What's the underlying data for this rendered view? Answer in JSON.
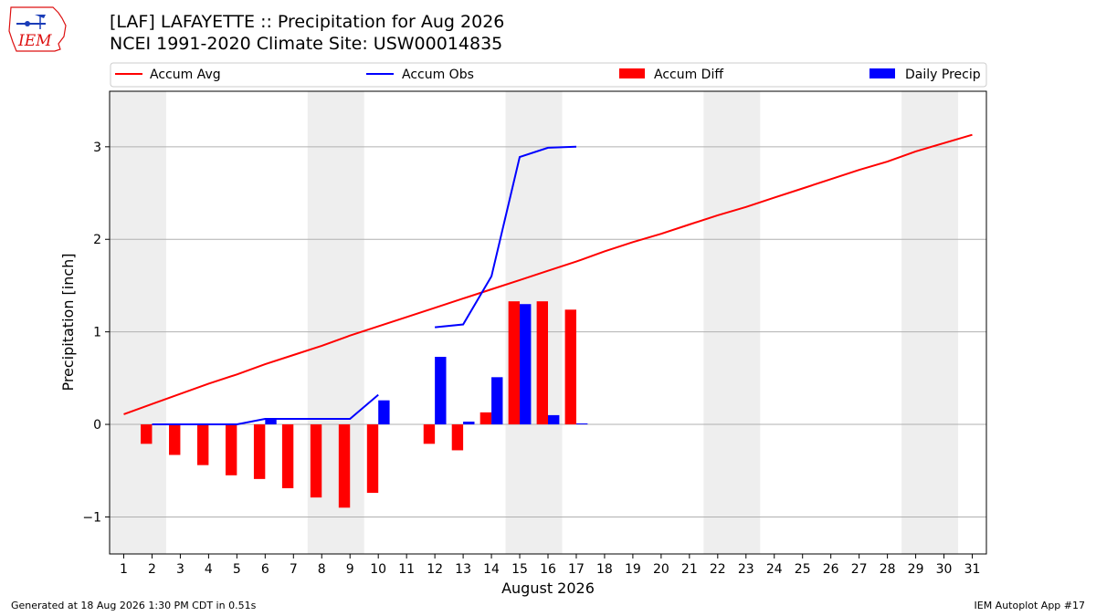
{
  "header": {
    "logo_text": "IEM",
    "title_line1": "[LAF] LAFAYETTE :: Precipitation for Aug 2026",
    "title_line2": "NCEI 1991-2020 Climate Site: USW00014835"
  },
  "footer": {
    "generated": "Generated at 18 Aug 2026 1:30 PM CDT in 0.51s",
    "app": "IEM Autoplot App #17"
  },
  "colors": {
    "accum_avg": "#ff0000",
    "accum_obs": "#0000ff",
    "accum_diff": "#ff0000",
    "daily_precip": "#0000ff",
    "weekend_shade": "#eeeeee",
    "grid": "#b0b0b0"
  },
  "chart_data": {
    "type": "bar",
    "xlabel": "August 2026",
    "ylabel": "Precipitation [inch]",
    "x": [
      1,
      2,
      3,
      4,
      5,
      6,
      7,
      8,
      9,
      10,
      11,
      12,
      13,
      14,
      15,
      16,
      17,
      18,
      19,
      20,
      21,
      22,
      23,
      24,
      25,
      26,
      27,
      28,
      29,
      30,
      31
    ],
    "xlim": [
      0.5,
      31.5
    ],
    "ylim": [
      -1.4,
      3.6
    ],
    "yticks": [
      -1,
      0,
      1,
      2,
      3
    ],
    "ytick_labels": [
      "−1",
      "0",
      "1",
      "2",
      "3"
    ],
    "grid": "y",
    "legend_position": "top",
    "shaded_days": [
      [
        1,
        2
      ],
      [
        8,
        9
      ],
      [
        15,
        16
      ],
      [
        22,
        23
      ],
      [
        29,
        30
      ]
    ],
    "series": [
      {
        "name": "Accum Avg",
        "type": "line",
        "x": [
          1,
          2,
          3,
          4,
          5,
          6,
          7,
          8,
          9,
          10,
          11,
          12,
          13,
          14,
          15,
          16,
          17,
          18,
          19,
          20,
          21,
          22,
          23,
          24,
          25,
          26,
          27,
          28,
          29,
          30,
          31
        ],
        "values": [
          0.11,
          0.22,
          0.33,
          0.44,
          0.54,
          0.65,
          0.75,
          0.85,
          0.96,
          1.06,
          1.16,
          1.26,
          1.36,
          1.46,
          1.56,
          1.66,
          1.76,
          1.87,
          1.97,
          2.06,
          2.16,
          2.26,
          2.35,
          2.45,
          2.55,
          2.65,
          2.75,
          2.84,
          2.95,
          3.04,
          3.13
        ]
      },
      {
        "name": "Accum Obs",
        "type": "line",
        "x": [
          2,
          3,
          4,
          5,
          6,
          7,
          8,
          9,
          10,
          11,
          12,
          13,
          14,
          15,
          16,
          17
        ],
        "values": [
          0.0,
          0.0,
          0.0,
          0.0,
          0.06,
          0.06,
          0.06,
          0.06,
          0.32,
          null,
          1.05,
          1.08,
          1.6,
          2.89,
          2.99,
          3.0
        ]
      },
      {
        "name": "Accum Diff",
        "type": "bar",
        "x": [
          2,
          3,
          4,
          5,
          6,
          7,
          8,
          9,
          10,
          12,
          13,
          14,
          15,
          16,
          17
        ],
        "values": [
          -0.21,
          -0.33,
          -0.44,
          -0.55,
          -0.59,
          -0.69,
          -0.79,
          -0.9,
          -0.74,
          -0.21,
          -0.28,
          0.13,
          1.33,
          1.33,
          1.24
        ]
      },
      {
        "name": "Daily Precip",
        "type": "bar",
        "x": [
          6,
          10,
          12,
          13,
          14,
          15,
          16,
          17
        ],
        "values": [
          0.06,
          0.26,
          0.73,
          0.03,
          0.51,
          1.3,
          0.1,
          0.01
        ]
      }
    ]
  }
}
